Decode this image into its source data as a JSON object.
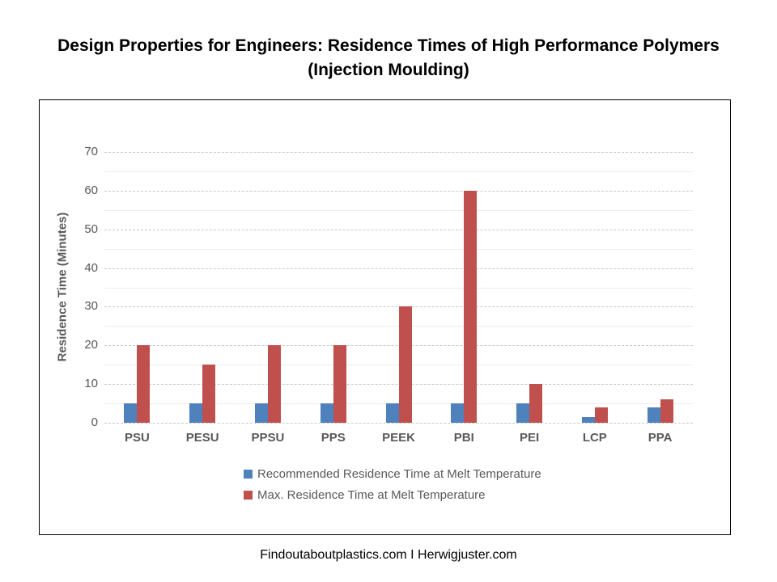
{
  "page": {
    "title": "Design Properties for Engineers: Residence Times of High Performance Polymers (Injection Moulding)",
    "footer": "Findoutaboutplastics.com I Herwigjuster.com"
  },
  "chart_data": {
    "type": "bar",
    "title": "Design Properties for Engineers: Residence Times of High Performance Polymers (Injection Moulding)",
    "categories": [
      "PSU",
      "PESU",
      "PPSU",
      "PPS",
      "PEEK",
      "PBI",
      "PEI",
      "LCP",
      "PPA"
    ],
    "series": [
      {
        "name": "Recommended Residence Time at Melt Temperature",
        "color": "#4F81BD",
        "values": [
          5,
          5,
          5,
          5,
          5,
          5,
          5,
          1.5,
          4
        ]
      },
      {
        "name": "Max. Residence Time at Melt Temperature",
        "color": "#C0504D",
        "values": [
          20,
          15,
          20,
          20,
          30,
          60,
          10,
          4,
          6
        ]
      }
    ],
    "xlabel": "",
    "ylabel": "Residence Time (Minutes)",
    "ylim": [
      0,
      70
    ],
    "ytick_step": 10,
    "minor_grid_step": 5,
    "grid": true,
    "legend_position": "bottom"
  }
}
